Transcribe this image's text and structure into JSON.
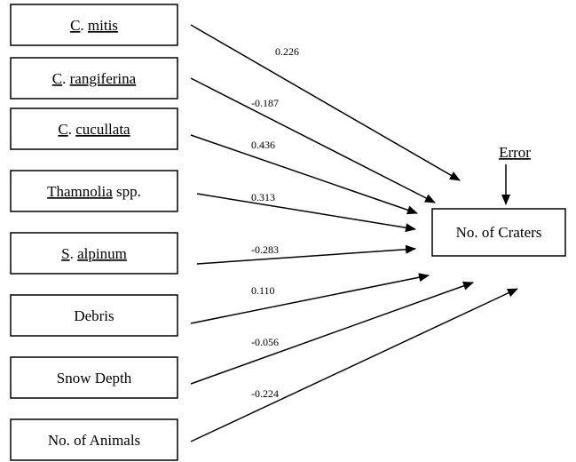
{
  "nodes": [
    {
      "label": [
        {
          "text": "C",
          "underline": true
        },
        {
          "text": ". ",
          "underline": false
        },
        {
          "text": "mitis",
          "underline": true
        }
      ]
    },
    {
      "label": [
        {
          "text": "C",
          "underline": true
        },
        {
          "text": ". ",
          "underline": false
        },
        {
          "text": "rangiferina",
          "underline": true
        }
      ]
    },
    {
      "label": [
        {
          "text": "C",
          "underline": true
        },
        {
          "text": ". ",
          "underline": false
        },
        {
          "text": "cucullata",
          "underline": true
        }
      ]
    },
    {
      "label": [
        {
          "text": "Thamnolia",
          "underline": true
        },
        {
          "text": " spp.",
          "underline": false
        }
      ]
    },
    {
      "label": [
        {
          "text": "S",
          "underline": true
        },
        {
          "text": ". ",
          "underline": false
        },
        {
          "text": "alpinum",
          "underline": true
        }
      ]
    },
    {
      "label": [
        {
          "text": "Debris",
          "underline": false
        }
      ]
    },
    {
      "label": [
        {
          "text": "Snow Depth",
          "underline": false
        }
      ]
    },
    {
      "label": [
        {
          "text": "No. of Animals",
          "underline": false
        }
      ]
    }
  ],
  "target": {
    "label": "No. of Craters"
  },
  "error": {
    "label": "Error"
  },
  "edges": [
    "0.226",
    "-0.187",
    "0.436",
    "0.313",
    "-0.283",
    "0.110",
    "-0.056",
    "-0.224"
  ]
}
